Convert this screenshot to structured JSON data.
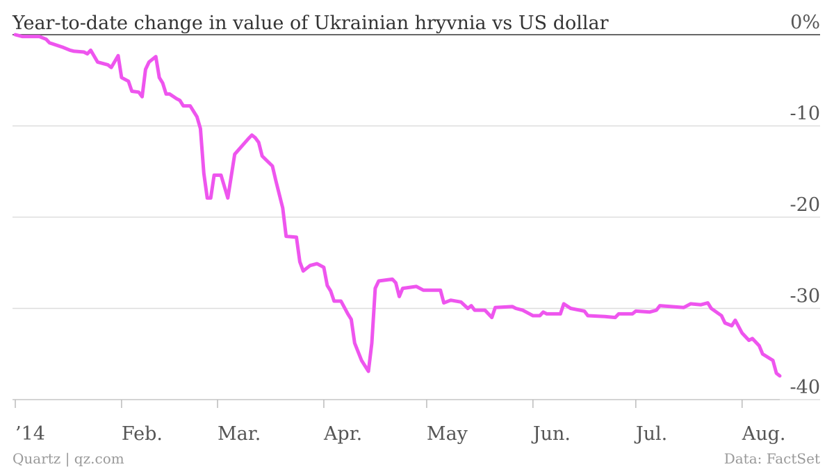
{
  "chart_data": {
    "type": "line",
    "title": "Year-to-date change in value of Ukrainian hryvnia vs US dollar",
    "credit": "Quartz | qz.com",
    "source": "Data: FactSet",
    "x": [
      0,
      2,
      7,
      9,
      10,
      14,
      16,
      17,
      20,
      21,
      22,
      24,
      27,
      28,
      30,
      31,
      33,
      34,
      36,
      37,
      38,
      39,
      41,
      42,
      43,
      44,
      45,
      47,
      48,
      49,
      51,
      53,
      54,
      55,
      56,
      57,
      58,
      60,
      62,
      64,
      68,
      69,
      70,
      71,
      72,
      75,
      76,
      78,
      79,
      82,
      83,
      84,
      86,
      88,
      90,
      91,
      92,
      93,
      95,
      97,
      98,
      99,
      101,
      103,
      104,
      105,
      106,
      110,
      111,
      112,
      113,
      117,
      119,
      124,
      125,
      127,
      130,
      132,
      133,
      134,
      137,
      139,
      140,
      145,
      146,
      148,
      151,
      153,
      154,
      155,
      159,
      160,
      162,
      166,
      167,
      172,
      175,
      176,
      180,
      181,
      185,
      187,
      188,
      195,
      197,
      200,
      202,
      203,
      206,
      207,
      209,
      210,
      212,
      214,
      215,
      217,
      218,
      221,
      222,
      223
    ],
    "series": [
      {
        "name": "Hryvnia vs US dollar",
        "color": "#ee55ee",
        "values": [
          0,
          -0.2,
          -0.2,
          -0.5,
          -0.9,
          -1.4,
          -1.7,
          -1.8,
          -1.9,
          -2.1,
          -1.7,
          -3.0,
          -3.3,
          -3.6,
          -2.3,
          -4.7,
          -5.1,
          -6.2,
          -6.3,
          -6.8,
          -3.8,
          -3.0,
          -2.4,
          -4.7,
          -5.3,
          -6.5,
          -6.5,
          -7.0,
          -7.2,
          -7.8,
          -7.8,
          -9.0,
          -10.3,
          -15.2,
          -17.9,
          -17.9,
          -15.4,
          -15.4,
          -17.9,
          -13.1,
          -11.4,
          -11.0,
          -11.3,
          -11.8,
          -13.3,
          -14.4,
          -16.0,
          -19.0,
          -22.1,
          -22.2,
          -24.9,
          -25.9,
          -25.3,
          -25.1,
          -25.5,
          -27.5,
          -28.1,
          -29.2,
          -29.2,
          -30.6,
          -31.2,
          -33.8,
          -35.7,
          -36.9,
          -33.8,
          -27.8,
          -27.0,
          -26.8,
          -27.2,
          -28.7,
          -27.8,
          -27.6,
          -28.0,
          -28.0,
          -29.4,
          -29.1,
          -29.3,
          -30.0,
          -29.7,
          -30.2,
          -30.2,
          -31.0,
          -29.9,
          -29.8,
          -30.0,
          -30.2,
          -30.8,
          -30.8,
          -30.4,
          -30.6,
          -30.6,
          -29.5,
          -30.0,
          -30.3,
          -30.8,
          -30.9,
          -31.0,
          -30.6,
          -30.6,
          -30.3,
          -30.4,
          -30.2,
          -29.7,
          -29.9,
          -29.5,
          -29.6,
          -29.4,
          -30.0,
          -30.8,
          -31.6,
          -31.9,
          -31.3,
          -32.7,
          -33.5,
          -33.3,
          -34.1,
          -35.0,
          -35.7,
          -37.1,
          -37.4
        ]
      }
    ],
    "xlim": [
      0,
      223
    ],
    "xticks": [
      {
        "value": 0,
        "label": "’14"
      },
      {
        "value": 31,
        "label": "Feb."
      },
      {
        "value": 59,
        "label": "Mar."
      },
      {
        "value": 90,
        "label": "Apr."
      },
      {
        "value": 120,
        "label": "May"
      },
      {
        "value": 151,
        "label": "Jun."
      },
      {
        "value": 181,
        "label": "Jul."
      },
      {
        "value": 212,
        "label": "Aug."
      }
    ],
    "ylim": [
      -40,
      0
    ],
    "yticks": [
      {
        "value": 0,
        "label": "0%"
      },
      -10,
      -20,
      -30,
      -40
    ],
    "grid": true
  }
}
